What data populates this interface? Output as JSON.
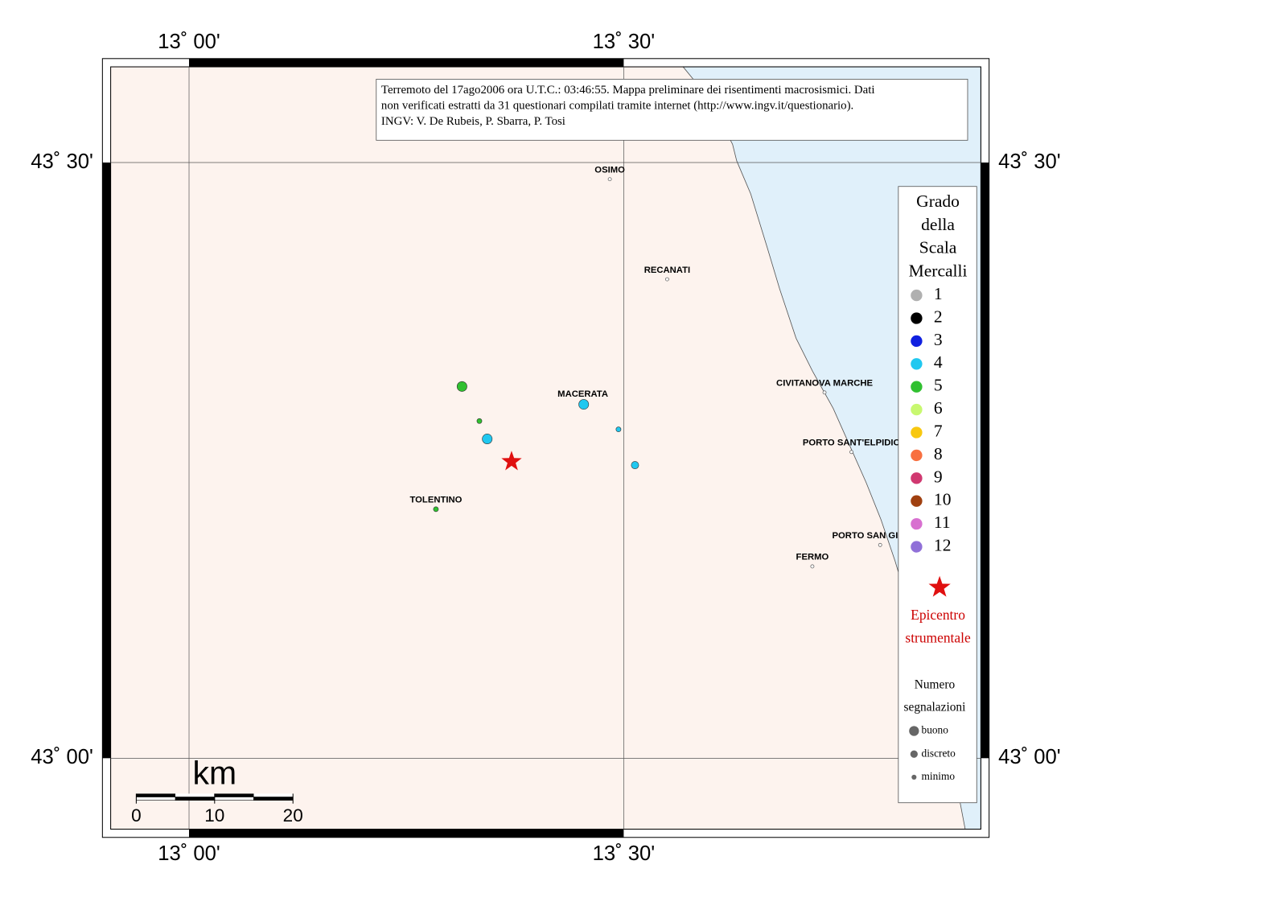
{
  "map": {
    "lon_ticks": [
      {
        "value": 13.0,
        "label": "13˚ 00'"
      },
      {
        "value": 13.5,
        "label": "13˚ 30'"
      }
    ],
    "lat_ticks": [
      {
        "value": 43.5,
        "label": "43˚ 30'"
      },
      {
        "value": 43.0,
        "label": "43˚ 00'"
      }
    ],
    "caption": [
      "Terremoto del 17ago2006 ora U.T.C.: 03:46:55.  Mappa preliminare dei risentimenti macrosismici.  Dati",
      "non verificati estratti da 31 questionari compilati tramite internet (http://www.ingv.it/questionario).",
      "INGV: V.  De Rubeis, P.  Sbarra, P.  Tosi"
    ],
    "cities": [
      {
        "name": "OSIMO",
        "lon": 13.484,
        "lat": 43.486
      },
      {
        "name": "RECANATI",
        "lon": 13.55,
        "lat": 43.402
      },
      {
        "name": "MACERATA",
        "lon": 13.453,
        "lat": 43.298
      },
      {
        "name": "CIVITANOVA MARCHE",
        "lon": 13.731,
        "lat": 43.307
      },
      {
        "name": "PORTO SANT'ELPIDIO",
        "lon": 13.762,
        "lat": 43.257
      },
      {
        "name": "PORTO SAN GIORGIO",
        "lon": 13.795,
        "lat": 43.179
      },
      {
        "name": "FERMO",
        "lon": 13.717,
        "lat": 43.161
      },
      {
        "name": "TOLENTINO",
        "lon": 13.284,
        "lat": 43.209
      }
    ],
    "observations": [
      {
        "lon": 13.314,
        "lat": 43.312,
        "intensity": 5,
        "reports": "buono"
      },
      {
        "lon": 13.334,
        "lat": 43.283,
        "intensity": 5,
        "reports": "minimo"
      },
      {
        "lon": 13.343,
        "lat": 43.268,
        "intensity": 4,
        "reports": "buono"
      },
      {
        "lon": 13.454,
        "lat": 43.297,
        "intensity": 4,
        "reports": "buono"
      },
      {
        "lon": 13.494,
        "lat": 43.276,
        "intensity": 4,
        "reports": "minimo"
      },
      {
        "lon": 13.513,
        "lat": 43.246,
        "intensity": 4,
        "reports": "discreto"
      },
      {
        "lon": 13.284,
        "lat": 43.209,
        "intensity": 5,
        "reports": "minimo"
      }
    ],
    "epicenter": {
      "lon": 13.371,
      "lat": 43.249
    },
    "scale_bar": {
      "unit": "km",
      "ticks": [
        0,
        10,
        20
      ]
    },
    "legend": {
      "title": [
        "Grado",
        "della",
        "Scala",
        "Mercalli"
      ],
      "items": [
        {
          "value": 1,
          "color": "#b0b0b0"
        },
        {
          "value": 2,
          "color": "#000000"
        },
        {
          "value": 3,
          "color": "#1020e0"
        },
        {
          "value": 4,
          "color": "#20c8f0"
        },
        {
          "value": 5,
          "color": "#30c030"
        },
        {
          "value": 6,
          "color": "#c8f870"
        },
        {
          "value": 7,
          "color": "#f8c810"
        },
        {
          "value": 8,
          "color": "#f87040"
        },
        {
          "value": 9,
          "color": "#d03870"
        },
        {
          "value": 10,
          "color": "#a04010"
        },
        {
          "value": 11,
          "color": "#d870d0"
        },
        {
          "value": 12,
          "color": "#9070d8"
        }
      ],
      "epicenter_label": [
        "Epicentro",
        "strumentale"
      ],
      "reports_title": [
        "Numero",
        "segnalazioni"
      ],
      "reports_sizes": [
        "buono",
        "discreto",
        "minimo"
      ]
    }
  }
}
